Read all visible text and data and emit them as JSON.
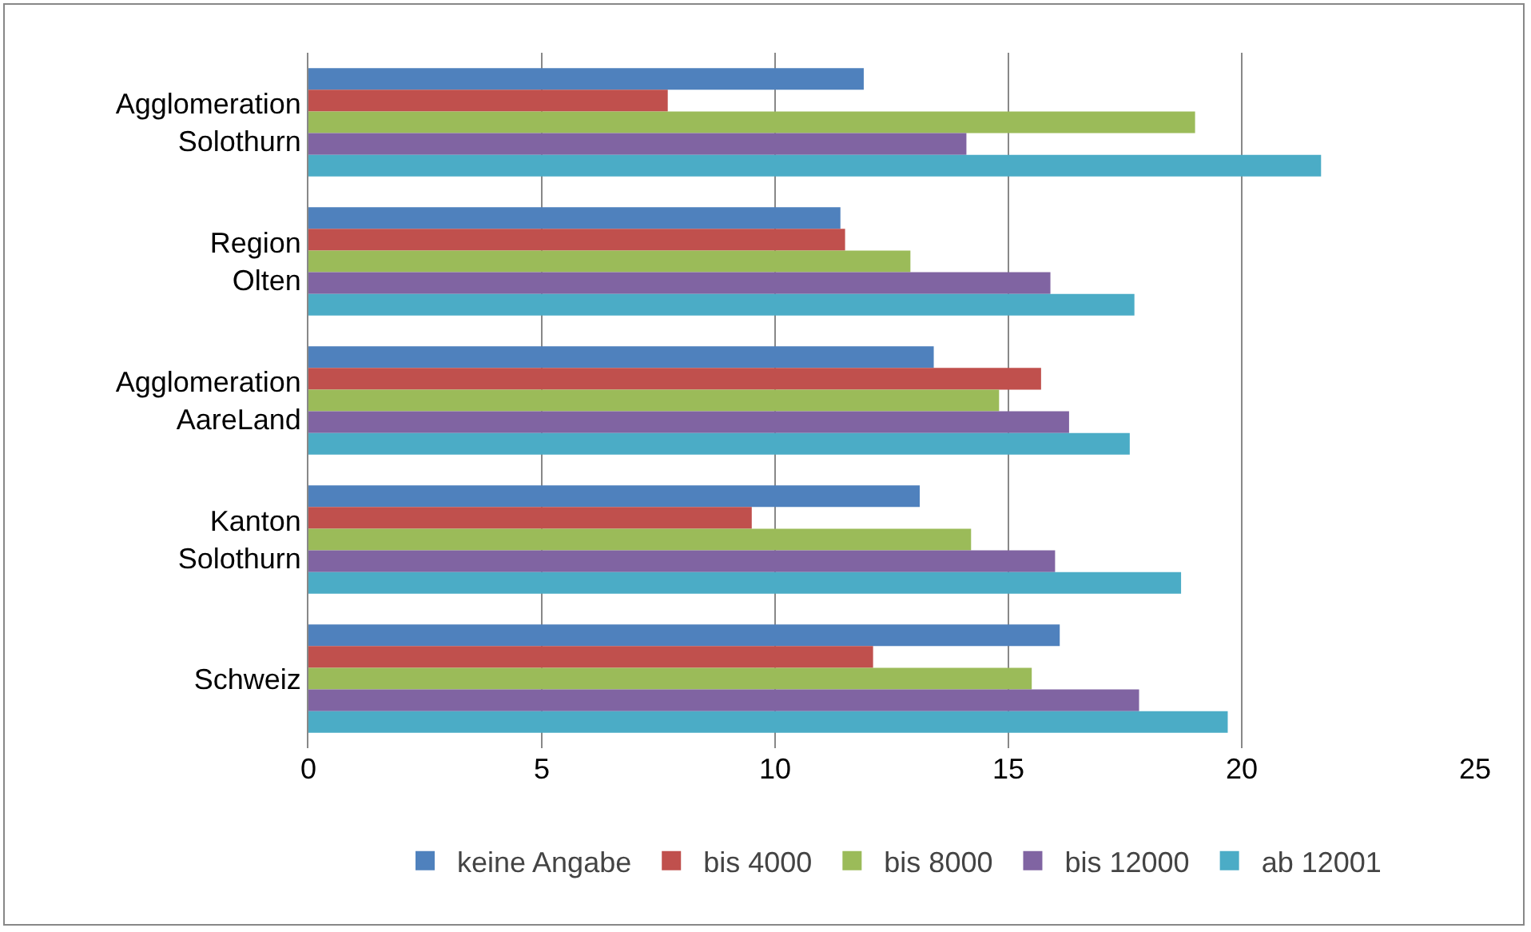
{
  "chart_data": {
    "type": "bar",
    "orientation": "horizontal",
    "categories": [
      "Agglomeration Solothurn",
      "Region Olten",
      "Agglomeration AareLand",
      "Kanton Solothurn",
      "Schweiz"
    ],
    "series": [
      {
        "name": "keine Angabe",
        "color": "#4f81bd",
        "values": [
          11.9,
          11.4,
          13.4,
          13.1,
          16.1
        ]
      },
      {
        "name": "bis 4000",
        "color": "#c0504d",
        "values": [
          7.7,
          11.5,
          15.7,
          9.5,
          12.1
        ]
      },
      {
        "name": "bis 8000",
        "color": "#9bbb59",
        "values": [
          19.0,
          12.9,
          14.8,
          14.2,
          15.5
        ]
      },
      {
        "name": "bis 12000",
        "color": "#8064a2",
        "values": [
          14.1,
          15.9,
          16.3,
          16.0,
          17.8
        ]
      },
      {
        "name": "ab 12001",
        "color": "#4bacc6",
        "values": [
          21.7,
          17.7,
          17.6,
          18.7,
          19.7
        ]
      }
    ],
    "xlim": [
      0,
      25
    ],
    "xticks": [
      0,
      5,
      10,
      15,
      20,
      25
    ],
    "grid": "x",
    "legend": "bottom"
  }
}
